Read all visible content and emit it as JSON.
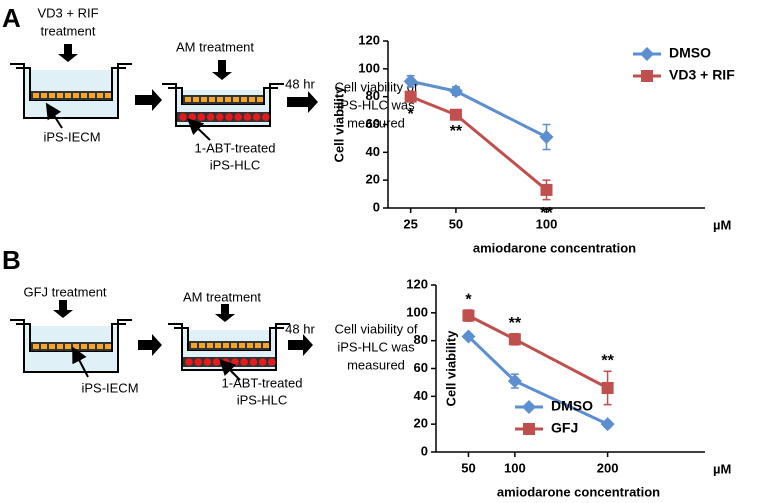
{
  "panels": [
    {
      "letter": "A",
      "pretreatment": [
        "VD3 + RIF",
        "treatment"
      ],
      "insert_label": "iPS-IECM",
      "treatment": "AM treatment",
      "cell_label": [
        "1-ABT-treated",
        "iPS-HLC"
      ],
      "time": "48 hr",
      "result": [
        "Cell viability of",
        "iPS-HLC was",
        "measured"
      ]
    },
    {
      "letter": "B",
      "pretreatment": [
        "GFJ treatment"
      ],
      "insert_label": "iPS-IECM",
      "treatment": "AM treatment",
      "cell_label": [
        "1-ABT-treated",
        "iPS-HLC"
      ],
      "time": "48 hr",
      "result": [
        "Cell viability of",
        "iPS-HLC was",
        "measured"
      ]
    }
  ],
  "chart_data": [
    {
      "type": "line",
      "y_label": "Cell viability",
      "x_label": "amiodarone concentration",
      "x_unit": "µM",
      "x": [
        25,
        50,
        100
      ],
      "xlim": [
        12.5,
        187.5
      ],
      "xticks": [
        25,
        50,
        100
      ],
      "ylim": [
        0,
        120
      ],
      "yticks": [
        0,
        20,
        40,
        60,
        80,
        100,
        120
      ],
      "legend": "upper right",
      "series": [
        {
          "name": "DMSO",
          "color": "#5b8fd0",
          "marker": "diamond",
          "values": [
            91,
            84,
            51
          ],
          "errors": [
            4,
            3,
            9
          ]
        },
        {
          "name": "VD3 + RIF",
          "color": "#c0504d",
          "marker": "square",
          "values": [
            80,
            67,
            13
          ],
          "errors": [
            3,
            2,
            7
          ]
        }
      ],
      "annotation_side": "below",
      "annotations": [
        {
          "series": 1,
          "x": 25,
          "text": "*"
        },
        {
          "series": 1,
          "x": 50,
          "text": "**"
        },
        {
          "series": 1,
          "x": 100,
          "text": "**"
        }
      ]
    },
    {
      "type": "line",
      "y_label": "Cell viability",
      "x_label": "amiodarone concentration",
      "x_unit": "µM",
      "x": [
        50,
        100,
        200
      ],
      "xlim": [
        15,
        305
      ],
      "xticks": [
        50,
        100,
        200
      ],
      "ylim": [
        0,
        120
      ],
      "yticks": [
        0,
        20,
        40,
        60,
        80,
        100,
        120
      ],
      "legend": "lower left",
      "series": [
        {
          "name": "DMSO",
          "color": "#5b8fd0",
          "marker": "diamond",
          "values": [
            83,
            51,
            20
          ],
          "errors": [
            1,
            5,
            2
          ]
        },
        {
          "name": "GFJ",
          "color": "#c0504d",
          "marker": "square",
          "values": [
            98,
            81,
            46
          ],
          "errors": [
            4,
            4,
            12
          ]
        }
      ],
      "annotation_side": "above",
      "annotations": [
        {
          "series": 1,
          "x": 50,
          "text": "*"
        },
        {
          "series": 1,
          "x": 100,
          "text": "**"
        },
        {
          "series": 1,
          "x": 200,
          "text": "**"
        }
      ]
    }
  ]
}
